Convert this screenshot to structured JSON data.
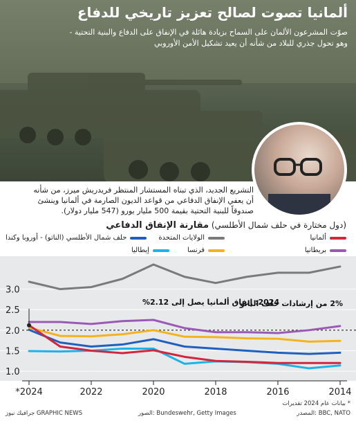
{
  "header": {
    "title": "ألمانيا تصوت لصالح تعزيز تاريخي للدفاع",
    "subtitle_line1": "صوّت المشرعون الألمان على السماح بزيادة هائلة في الإنفاق على الدفاع والبنية التحتية -",
    "subtitle_line2": "وهو تحول جذري للبلاد من شأنه أن يعيد تشكيل الأمن الأوروبي"
  },
  "body_text": {
    "line1": "التشريع الجديد، الذي تبناه المستشار المنتظر فريدريش ميرز، من شأنه",
    "line2": "أن يعفي الإنفاق الدفاعي من قواعد الديون الصارمة في ألمانيا وينشئ",
    "line3": "صندوقاً للبنية التحتية بقيمة 500 مليار يورو (547 مليار دولار)."
  },
  "chart_heading": {
    "title": "مقارنة الإنفاق الدفاعي",
    "qualifier": "(دول مختارة في حلف شمال الأطلسي)"
  },
  "legend": [
    {
      "label": "ألمانيا",
      "color": "#d1263b"
    },
    {
      "label": "بريطانيا",
      "color": "#9b59b6"
    },
    {
      "label": "الولايات المتحدة",
      "color": "#7a7a7a"
    },
    {
      "label": "فرنسا",
      "color": "#f5b21f"
    },
    {
      "label": "حلف شمال الأطلسي (الناتو) - أوروبا وكندا",
      "color": "#1f5fbf"
    },
    {
      "label": "إيطاليا",
      "color": "#1cb4e8"
    }
  ],
  "annotations": {
    "germany_label": "2024: إنفاق ألمانيا يصل إلى 2.12%",
    "nato_label": "2% من إرشادات حلف الناتو"
  },
  "chart_data": {
    "type": "line",
    "x": [
      2014,
      2015,
      2016,
      2017,
      2018,
      2019,
      2020,
      2021,
      2022,
      2023,
      2024
    ],
    "x_tick_labels": [
      "2014",
      "2016",
      "2018",
      "2020",
      "2022",
      "*2024"
    ],
    "x_reversed": true,
    "ylim": [
      0.9,
      3.6
    ],
    "y_ticks": [
      "1.0",
      "1.5",
      "2.0",
      "2.5",
      "3.0"
    ],
    "reference_line": 2.0,
    "series": [
      {
        "name": "الولايات المتحدة",
        "color": "#7a7a7a",
        "values": [
          3.55,
          3.4,
          3.4,
          3.3,
          3.15,
          3.3,
          3.6,
          3.25,
          3.05,
          3.0,
          3.18
        ]
      },
      {
        "name": "بريطانيا",
        "color": "#9b59b6",
        "values": [
          2.1,
          2.0,
          1.93,
          1.95,
          1.95,
          2.05,
          2.25,
          2.22,
          2.15,
          2.2,
          2.2
        ]
      },
      {
        "name": "فرنسا",
        "color": "#f5b21f",
        "values": [
          1.74,
          1.72,
          1.79,
          1.8,
          1.83,
          1.84,
          2.0,
          1.9,
          1.85,
          1.86,
          2.06
        ]
      },
      {
        "name": "حلف شمال الأطلسي (الناتو) - أوروبا وكندا",
        "color": "#1f5fbf",
        "values": [
          1.45,
          1.42,
          1.45,
          1.5,
          1.55,
          1.6,
          1.78,
          1.65,
          1.6,
          1.7,
          2.01
        ]
      },
      {
        "name": "إيطاليا",
        "color": "#1cb4e8",
        "values": [
          1.14,
          1.07,
          1.18,
          1.22,
          1.24,
          1.18,
          1.55,
          1.55,
          1.5,
          1.48,
          1.49
        ]
      },
      {
        "name": "ألمانيا",
        "color": "#d1263b",
        "values": [
          1.2,
          1.2,
          1.2,
          1.23,
          1.25,
          1.35,
          1.51,
          1.44,
          1.5,
          1.6,
          2.12
        ]
      }
    ]
  },
  "footer": {
    "source": "المصدر: BBC, NATO",
    "photos": "الصور: Bundeswehr, Getty Images",
    "credit": "جرافيك نيوز GRAPHIC NEWS",
    "note": "* بيانات عام 2024 تقديرات"
  }
}
